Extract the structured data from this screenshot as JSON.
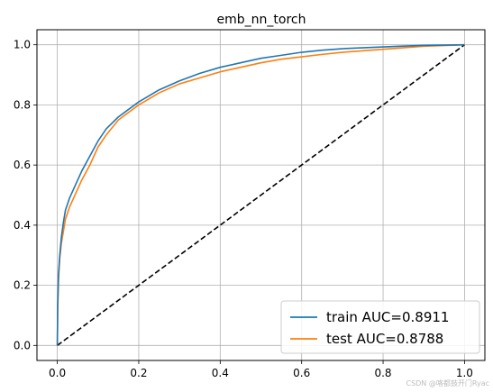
{
  "chart_data": {
    "type": "line",
    "title": "emb_nn_torch",
    "xlabel": "",
    "ylabel": "",
    "xlim": [
      -0.05,
      1.05
    ],
    "ylim": [
      -0.05,
      1.05
    ],
    "xticks": [
      "0.0",
      "0.2",
      "0.4",
      "0.6",
      "0.8",
      "1.0"
    ],
    "yticks": [
      "0.0",
      "0.2",
      "0.4",
      "0.6",
      "0.8",
      "1.0"
    ],
    "grid": true,
    "legend_position": "lower-right",
    "series": [
      {
        "name": "train AUC=0.8911",
        "color": "#1f77b4",
        "x": [
          0,
          0.001,
          0.003,
          0.006,
          0.01,
          0.015,
          0.02,
          0.03,
          0.04,
          0.05,
          0.06,
          0.08,
          0.1,
          0.12,
          0.15,
          0.2,
          0.25,
          0.3,
          0.35,
          0.4,
          0.45,
          0.5,
          0.55,
          0.6,
          0.65,
          0.7,
          0.8,
          0.9,
          1.0
        ],
        "y": [
          0,
          0.14,
          0.24,
          0.3,
          0.36,
          0.41,
          0.45,
          0.49,
          0.52,
          0.55,
          0.58,
          0.63,
          0.68,
          0.72,
          0.76,
          0.81,
          0.85,
          0.88,
          0.905,
          0.925,
          0.94,
          0.955,
          0.965,
          0.975,
          0.982,
          0.987,
          0.993,
          0.998,
          1.0
        ]
      },
      {
        "name": "test AUC=0.8788",
        "color": "#ff7f0e",
        "x": [
          0,
          0.001,
          0.003,
          0.006,
          0.01,
          0.015,
          0.02,
          0.03,
          0.04,
          0.05,
          0.06,
          0.08,
          0.1,
          0.12,
          0.15,
          0.2,
          0.25,
          0.3,
          0.35,
          0.4,
          0.45,
          0.5,
          0.55,
          0.6,
          0.65,
          0.7,
          0.8,
          0.9,
          1.0
        ],
        "y": [
          0,
          0.12,
          0.22,
          0.29,
          0.34,
          0.38,
          0.42,
          0.46,
          0.49,
          0.52,
          0.55,
          0.6,
          0.66,
          0.7,
          0.75,
          0.8,
          0.84,
          0.87,
          0.89,
          0.91,
          0.925,
          0.94,
          0.952,
          0.96,
          0.968,
          0.975,
          0.985,
          0.995,
          1.0
        ]
      },
      {
        "name": "",
        "color": "#000000",
        "style": "dashed",
        "x": [
          0,
          1
        ],
        "y": [
          0,
          1
        ]
      }
    ]
  },
  "watermark": "CSDN @咯都鼓开门Ryac"
}
